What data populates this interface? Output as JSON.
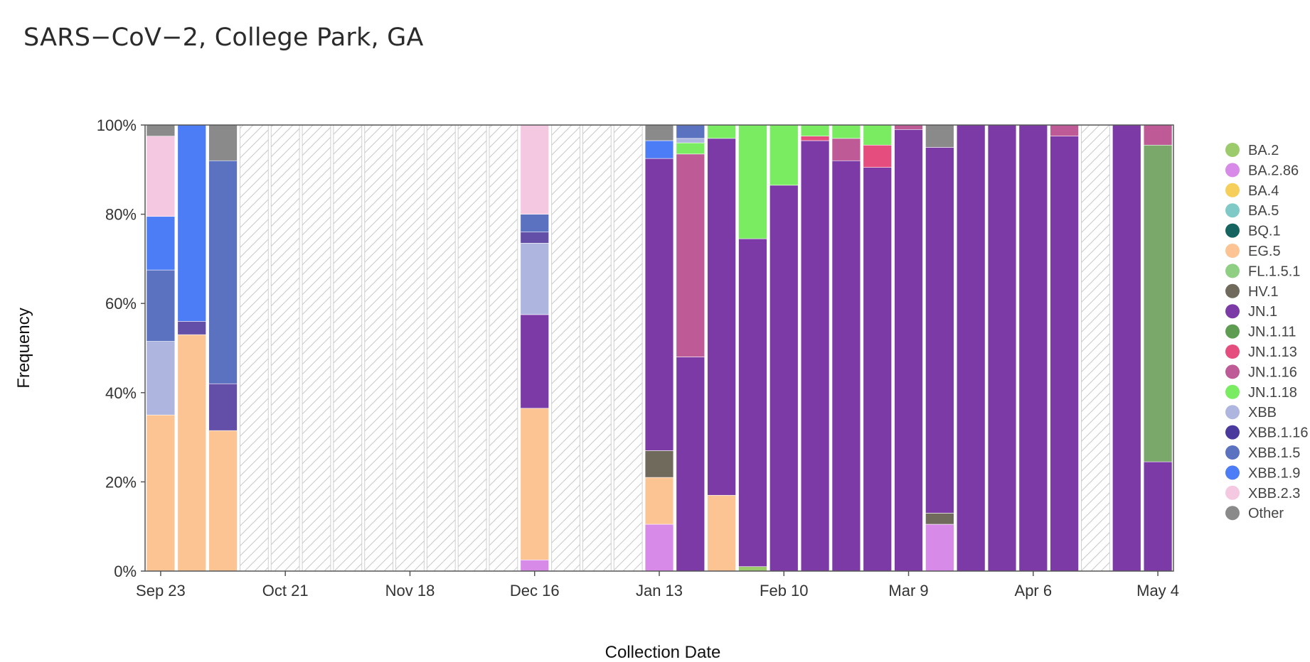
{
  "title": "SARS−CoV−2, College Park, GA",
  "chart_data": {
    "type": "bar",
    "stacked": true,
    "title": "SARS−CoV−2, College Park, GA",
    "xlabel": "Collection Date",
    "ylabel": "Frequency",
    "ylim": [
      0,
      100
    ],
    "y_ticks": [
      "0%",
      "20%",
      "40%",
      "60%",
      "80%",
      "100%"
    ],
    "x_ticks": [
      {
        "week": 0,
        "label": "Sep 23"
      },
      {
        "week": 4,
        "label": "Oct 21"
      },
      {
        "week": 8,
        "label": "Nov 18"
      },
      {
        "week": 12,
        "label": "Dec 16"
      },
      {
        "week": 16,
        "label": "Jan 13"
      },
      {
        "week": 20,
        "label": "Feb 10"
      },
      {
        "week": 24,
        "label": "Mar 9"
      },
      {
        "week": 28,
        "label": "Apr 6"
      },
      {
        "week": 32,
        "label": "May 4"
      }
    ],
    "legend_position": "right",
    "no_data_pattern": "diagonal hatch",
    "lineages": [
      {
        "name": "BA.2",
        "color": "#9ccb6b"
      },
      {
        "name": "BA.2.86",
        "color": "#d88ae8"
      },
      {
        "name": "BA.4",
        "color": "#f5cf5a"
      },
      {
        "name": "BA.5",
        "color": "#7fcac7"
      },
      {
        "name": "BQ.1",
        "color": "#16645f"
      },
      {
        "name": "EG.5",
        "color": "#fcc493"
      },
      {
        "name": "FL.1.5.1",
        "color": "#8fcf84"
      },
      {
        "name": "HV.1",
        "color": "#6f6a5c"
      },
      {
        "name": "JN.1",
        "color": "#7b3aa6"
      },
      {
        "name": "JN.1.11",
        "color": "#5e9c52"
      },
      {
        "name": "JN.1.13",
        "color": "#e44d7d"
      },
      {
        "name": "JN.1.16",
        "color": "#be5a95"
      },
      {
        "name": "JN.1.18",
        "color": "#7aec61"
      },
      {
        "name": "XBB",
        "color": "#aeb5df"
      },
      {
        "name": "XBB.1.16",
        "color": "#4a3a9e"
      },
      {
        "name": "XBB.1.5",
        "color": "#5b72c1"
      },
      {
        "name": "XBB.1.9",
        "color": "#4c7cf6"
      },
      {
        "name": "XBB.2.3",
        "color": "#f5c8e2"
      },
      {
        "name": "Other",
        "color": "#8a8a8a"
      }
    ],
    "series_colors": {
      "JN.1.11 (May 4 week)": "#79a86a",
      "XBB.1.16 (stack)": "#634ea8"
    },
    "bars": [
      {
        "week": 0,
        "segments": [
          {
            "lineage": "EG.5",
            "value": 35
          },
          {
            "lineage": "XBB",
            "value": 16.5
          },
          {
            "lineage": "XBB.1.5",
            "value": 16
          },
          {
            "lineage": "XBB.1.9",
            "value": 12
          },
          {
            "lineage": "XBB.2.3",
            "value": 18
          },
          {
            "lineage": "Other",
            "value": 2.5
          }
        ]
      },
      {
        "week": 1,
        "segments": [
          {
            "lineage": "EG.5",
            "value": 53
          },
          {
            "lineage": "XBB.1.16",
            "value": 3
          },
          {
            "lineage": "XBB.1.9",
            "value": 44
          }
        ]
      },
      {
        "week": 2,
        "segments": [
          {
            "lineage": "EG.5",
            "value": 31.5
          },
          {
            "lineage": "XBB.1.16",
            "value": 10.5
          },
          {
            "lineage": "XBB.1.5",
            "value": 50
          },
          {
            "lineage": "Other",
            "value": 8
          }
        ]
      },
      {
        "week": 3,
        "segments": []
      },
      {
        "week": 4,
        "segments": []
      },
      {
        "week": 5,
        "segments": []
      },
      {
        "week": 6,
        "segments": []
      },
      {
        "week": 7,
        "segments": []
      },
      {
        "week": 8,
        "segments": []
      },
      {
        "week": 9,
        "segments": []
      },
      {
        "week": 10,
        "segments": []
      },
      {
        "week": 11,
        "segments": []
      },
      {
        "week": 12,
        "segments": [
          {
            "lineage": "BA.2.86",
            "value": 2.5
          },
          {
            "lineage": "EG.5",
            "value": 34
          },
          {
            "lineage": "JN.1",
            "value": 21
          },
          {
            "lineage": "XBB",
            "value": 16
          },
          {
            "lineage": "XBB.1.16",
            "value": 2.5
          },
          {
            "lineage": "XBB.1.5",
            "value": 4
          },
          {
            "lineage": "XBB.2.3",
            "value": 20
          }
        ]
      },
      {
        "week": 13,
        "segments": []
      },
      {
        "week": 14,
        "segments": []
      },
      {
        "week": 15,
        "segments": []
      },
      {
        "week": 16,
        "segments": [
          {
            "lineage": "BA.2.86",
            "value": 10.5
          },
          {
            "lineage": "EG.5",
            "value": 10.5
          },
          {
            "lineage": "HV.1",
            "value": 6
          },
          {
            "lineage": "JN.1",
            "value": 65.5
          },
          {
            "lineage": "XBB.1.9",
            "value": 4
          },
          {
            "lineage": "Other",
            "value": 3.5
          }
        ]
      },
      {
        "week": 17,
        "segments": [
          {
            "lineage": "JN.1",
            "value": 48
          },
          {
            "lineage": "JN.1.16",
            "value": 45.5
          },
          {
            "lineage": "JN.1.18",
            "value": 2.5
          },
          {
            "lineage": "XBB",
            "value": 1
          },
          {
            "lineage": "XBB.1.5",
            "value": 3
          }
        ]
      },
      {
        "week": 18,
        "segments": [
          {
            "lineage": "EG.5",
            "value": 17
          },
          {
            "lineage": "JN.1",
            "value": 80
          },
          {
            "lineage": "JN.1.18",
            "value": 3
          }
        ]
      },
      {
        "week": 19,
        "segments": [
          {
            "lineage": "BA.2",
            "value": 1
          },
          {
            "lineage": "JN.1",
            "value": 73.5
          },
          {
            "lineage": "JN.1.18",
            "value": 25.5
          }
        ]
      },
      {
        "week": 20,
        "segments": [
          {
            "lineage": "JN.1",
            "value": 86.5
          },
          {
            "lineage": "JN.1.18",
            "value": 13.5
          }
        ]
      },
      {
        "week": 21,
        "segments": [
          {
            "lineage": "JN.1",
            "value": 96.5
          },
          {
            "lineage": "JN.1.13",
            "value": 1
          },
          {
            "lineage": "JN.1.18",
            "value": 2.5
          }
        ]
      },
      {
        "week": 22,
        "segments": [
          {
            "lineage": "JN.1",
            "value": 92
          },
          {
            "lineage": "JN.1.16",
            "value": 5
          },
          {
            "lineage": "JN.1.18",
            "value": 3
          }
        ]
      },
      {
        "week": 23,
        "segments": [
          {
            "lineage": "JN.1",
            "value": 90.5
          },
          {
            "lineage": "JN.1.13",
            "value": 5
          },
          {
            "lineage": "JN.1.18",
            "value": 4.5
          }
        ]
      },
      {
        "week": 24,
        "segments": [
          {
            "lineage": "JN.1",
            "value": 99
          },
          {
            "lineage": "JN.1.16",
            "value": 1
          }
        ]
      },
      {
        "week": 25,
        "segments": [
          {
            "lineage": "BA.2.86",
            "value": 10.5
          },
          {
            "lineage": "HV.1",
            "value": 2.5
          },
          {
            "lineage": "JN.1",
            "value": 82
          },
          {
            "lineage": "Other",
            "value": 5
          }
        ]
      },
      {
        "week": 26,
        "segments": [
          {
            "lineage": "JN.1",
            "value": 100
          }
        ]
      },
      {
        "week": 27,
        "segments": [
          {
            "lineage": "JN.1",
            "value": 100
          }
        ]
      },
      {
        "week": 28,
        "segments": [
          {
            "lineage": "JN.1",
            "value": 100
          }
        ]
      },
      {
        "week": 29,
        "segments": [
          {
            "lineage": "JN.1",
            "value": 97.5
          },
          {
            "lineage": "JN.1.16",
            "value": 2.5
          }
        ]
      },
      {
        "week": 30,
        "segments": []
      },
      {
        "week": 31,
        "segments": [
          {
            "lineage": "JN.1",
            "value": 100
          }
        ]
      },
      {
        "week": 32,
        "segments": [
          {
            "lineage": "JN.1",
            "value": 24.5
          },
          {
            "lineage": "JN.1.11",
            "value": 71
          },
          {
            "lineage": "JN.1.16",
            "value": 4.5
          }
        ]
      }
    ]
  }
}
